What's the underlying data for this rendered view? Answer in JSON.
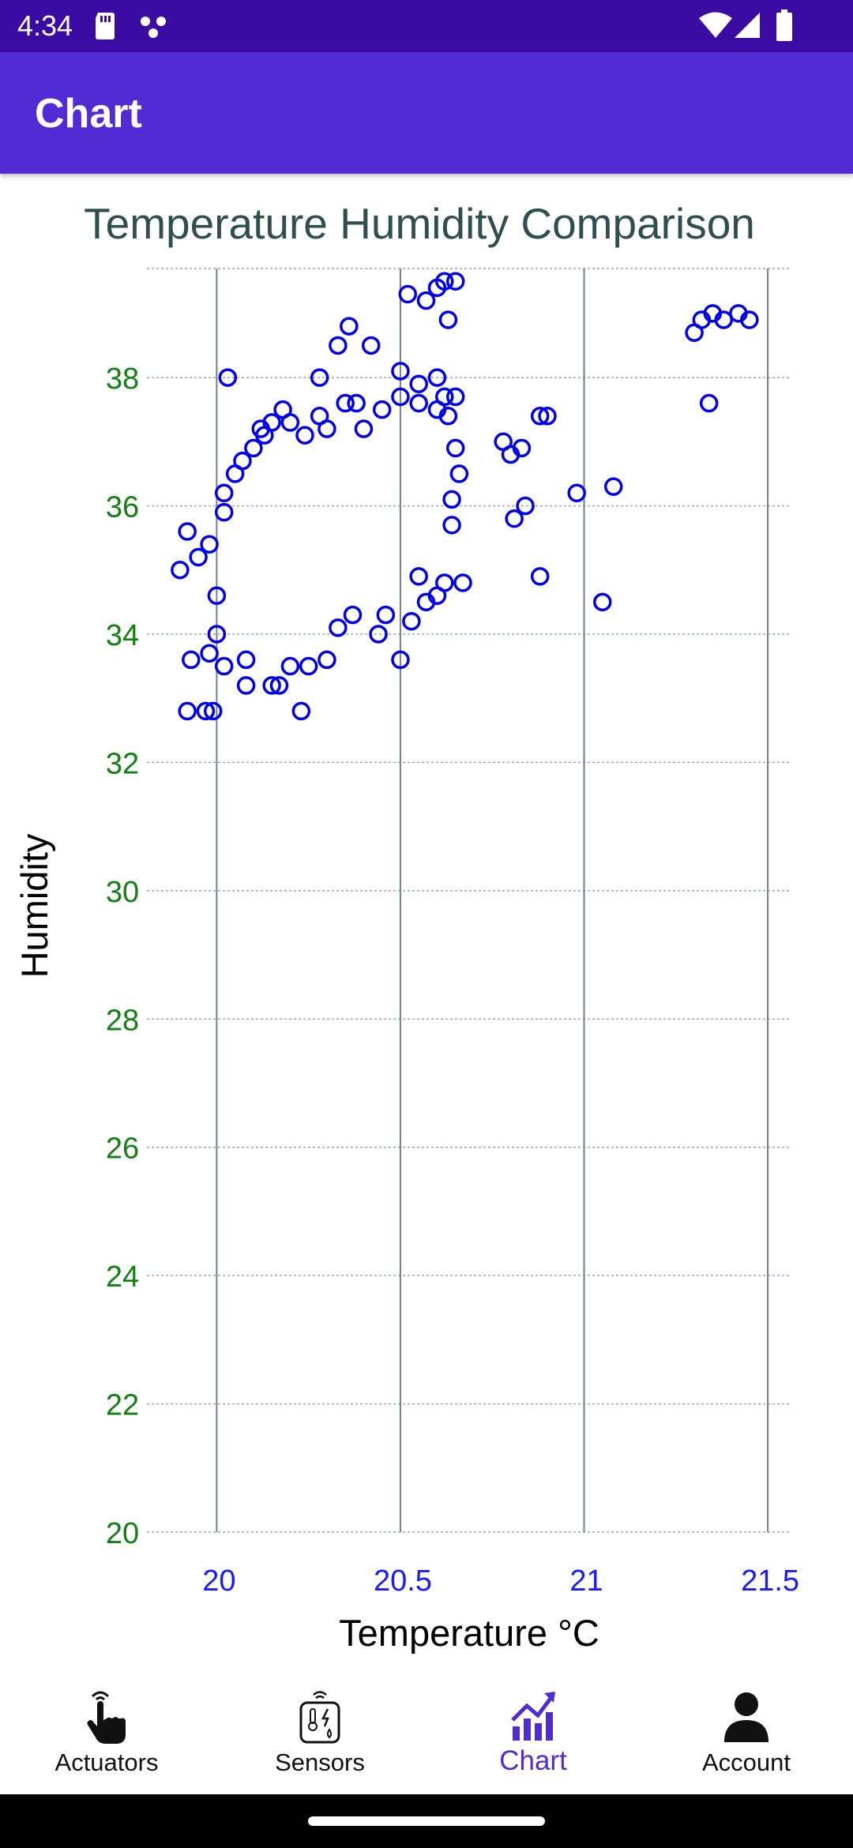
{
  "status_bar": {
    "time": "4:34",
    "icons": [
      "sd-card-icon",
      "dots-icon",
      "wifi-icon",
      "signal-icon",
      "battery-icon"
    ]
  },
  "app_bar": {
    "title": "Chart"
  },
  "chart_data": {
    "type": "scatter",
    "title": "Temperature Humidity Comparison",
    "xlabel": "Temperature °C",
    "ylabel": "Humidity",
    "xlim": [
      19.81,
      21.56
    ],
    "ylim": [
      20,
      39.7
    ],
    "x_ticks": [
      "20",
      "20.5",
      "21",
      "21.5"
    ],
    "y_ticks": [
      "20",
      "22",
      "24",
      "26",
      "28",
      "30",
      "32",
      "34",
      "36",
      "38"
    ],
    "grid": true,
    "marker": "open-circle",
    "colors": {
      "marker": "#0000ee",
      "x_tick": "#1a1aff",
      "y_tick": "#138013",
      "title": "#2f4f4f",
      "grid_x": "#708090",
      "grid_y": "#9aa5b1"
    },
    "series": [
      {
        "values": [
          [
            20.03,
            38.0
          ],
          [
            20.13,
            37.1
          ],
          [
            20.18,
            37.5
          ],
          [
            20.28,
            37.4
          ],
          [
            20.35,
            37.6
          ],
          [
            20.38,
            37.6
          ],
          [
            20.4,
            37.2
          ],
          [
            20.45,
            37.5
          ],
          [
            20.5,
            37.7
          ],
          [
            20.55,
            37.6
          ],
          [
            20.6,
            37.5
          ],
          [
            20.62,
            37.7
          ],
          [
            20.65,
            37.7
          ],
          [
            20.33,
            38.5
          ],
          [
            20.36,
            38.8
          ],
          [
            20.42,
            38.5
          ],
          [
            20.52,
            39.3
          ],
          [
            20.57,
            39.2
          ],
          [
            20.6,
            39.4
          ],
          [
            20.62,
            39.5
          ],
          [
            20.65,
            39.5
          ],
          [
            20.63,
            38.9
          ],
          [
            20.28,
            38.0
          ],
          [
            20.5,
            38.1
          ],
          [
            20.55,
            37.9
          ],
          [
            20.6,
            38.0
          ],
          [
            20.63,
            37.4
          ],
          [
            20.65,
            36.9
          ],
          [
            20.66,
            36.5
          ],
          [
            20.64,
            36.1
          ],
          [
            20.64,
            35.7
          ],
          [
            20.62,
            34.8
          ],
          [
            20.6,
            34.6
          ],
          [
            20.57,
            34.5
          ],
          [
            20.53,
            34.2
          ],
          [
            20.5,
            33.6
          ],
          [
            20.44,
            34.0
          ],
          [
            20.46,
            34.3
          ],
          [
            20.37,
            34.3
          ],
          [
            20.33,
            34.1
          ],
          [
            20.3,
            33.6
          ],
          [
            20.25,
            33.5
          ],
          [
            20.2,
            33.5
          ],
          [
            20.23,
            32.8
          ],
          [
            20.17,
            33.2
          ],
          [
            20.15,
            33.2
          ],
          [
            20.08,
            33.2
          ],
          [
            20.08,
            33.6
          ],
          [
            20.02,
            33.5
          ],
          [
            19.98,
            33.7
          ],
          [
            19.93,
            33.6
          ],
          [
            19.92,
            32.8
          ],
          [
            19.97,
            32.8
          ],
          [
            19.99,
            32.8
          ],
          [
            19.9,
            35.0
          ],
          [
            19.92,
            35.6
          ],
          [
            19.95,
            35.2
          ],
          [
            19.98,
            35.4
          ],
          [
            20.0,
            34.6
          ],
          [
            20.0,
            34.0
          ],
          [
            20.02,
            35.9
          ],
          [
            20.02,
            36.2
          ],
          [
            20.05,
            36.5
          ],
          [
            20.07,
            36.7
          ],
          [
            20.1,
            36.9
          ],
          [
            20.12,
            37.2
          ],
          [
            20.15,
            37.3
          ],
          [
            20.2,
            37.3
          ],
          [
            20.24,
            37.1
          ],
          [
            20.3,
            37.2
          ],
          [
            20.78,
            37.0
          ],
          [
            20.8,
            36.8
          ],
          [
            20.83,
            36.9
          ],
          [
            20.88,
            37.4
          ],
          [
            20.9,
            37.4
          ],
          [
            20.84,
            36.0
          ],
          [
            20.81,
            35.8
          ],
          [
            20.98,
            36.2
          ],
          [
            21.08,
            36.3
          ],
          [
            20.88,
            34.9
          ],
          [
            21.05,
            34.5
          ],
          [
            21.3,
            38.7
          ],
          [
            21.32,
            38.9
          ],
          [
            21.35,
            39.0
          ],
          [
            21.38,
            38.9
          ],
          [
            21.42,
            39.0
          ],
          [
            21.45,
            38.9
          ],
          [
            21.34,
            37.6
          ],
          [
            20.67,
            34.8
          ],
          [
            20.55,
            34.9
          ]
        ]
      }
    ]
  },
  "bottom_nav": {
    "items": [
      {
        "label": "Actuators",
        "icon": "hand-pointer-icon"
      },
      {
        "label": "Sensors",
        "icon": "sensor-device-icon"
      },
      {
        "label": "Chart",
        "icon": "chart-growth-icon",
        "active": true
      },
      {
        "label": "Account",
        "icon": "person-icon"
      }
    ],
    "active_color": "#512bd4"
  }
}
